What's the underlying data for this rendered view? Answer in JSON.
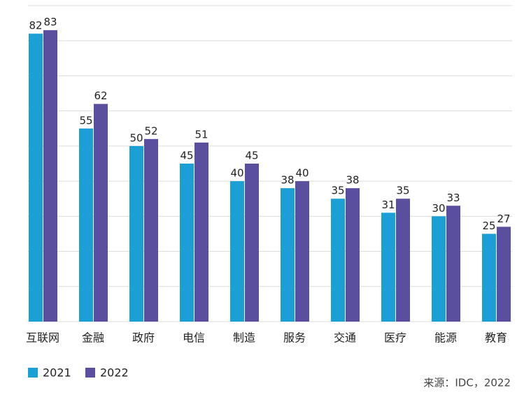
{
  "chart_data": {
    "type": "bar",
    "categories": [
      "互联网",
      "金融",
      "政府",
      "电信",
      "制造",
      "服务",
      "交通",
      "医疗",
      "能源",
      "教育"
    ],
    "series": [
      {
        "name": "2021",
        "color": "#1a9fd6",
        "values": [
          82,
          55,
          50,
          45,
          40,
          38,
          35,
          31,
          30,
          25
        ]
      },
      {
        "name": "2022",
        "color": "#5a4e9f",
        "values": [
          83,
          62,
          52,
          51,
          45,
          40,
          38,
          35,
          33,
          27
        ]
      }
    ],
    "ylim": [
      0,
      90
    ],
    "yticks": [
      0,
      10,
      20,
      30,
      40,
      50,
      60,
      70,
      80,
      90
    ],
    "grid": true,
    "note": "来源：IDC，2022"
  }
}
